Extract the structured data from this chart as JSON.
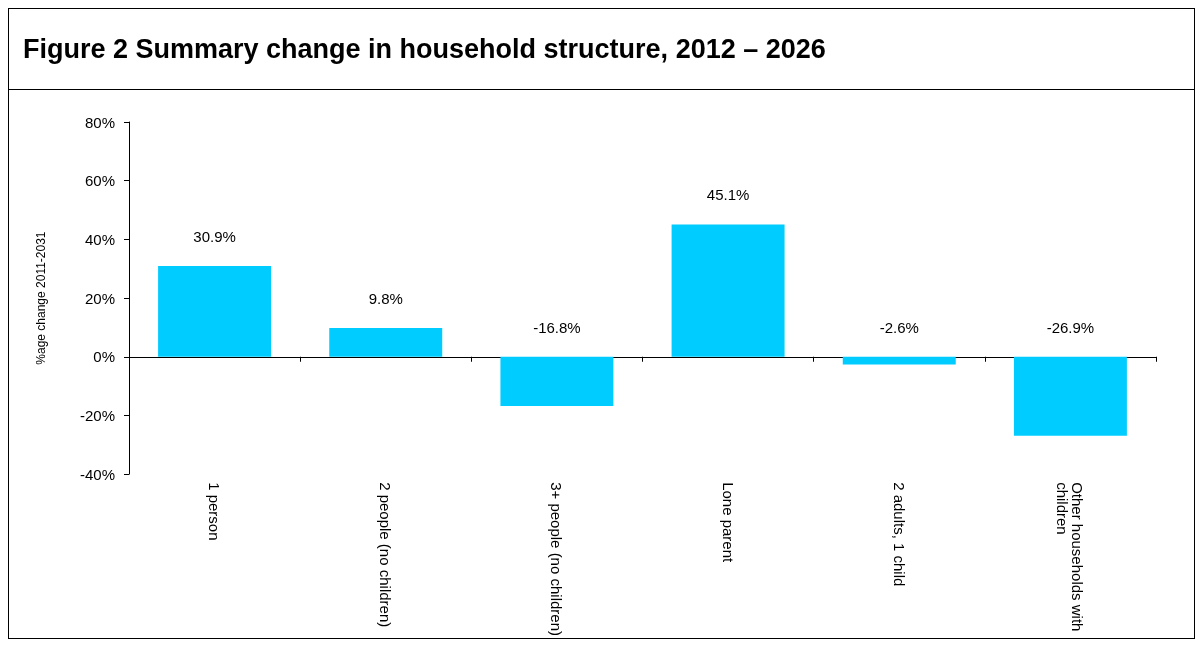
{
  "chart_data": {
    "type": "bar",
    "title": "Figure 2 Summary change in household structure, 2012 – 2026",
    "ylabel": "%age change 2011-2031",
    "categories": [
      "1 person",
      "2 people (no children)",
      "3+ people (no children)",
      "Lone parent",
      "2 adults, 1 child",
      "Other households with children"
    ],
    "values": [
      30.9,
      9.8,
      -16.8,
      45.1,
      -2.6,
      -26.9
    ],
    "value_labels": [
      "30.9%",
      "9.8%",
      "-16.8%",
      "45.1%",
      "-2.6%",
      "-26.9%"
    ],
    "color": "#00ccff",
    "ylim": [
      -40,
      80
    ],
    "yticks": [
      {
        "value": -40,
        "label": "-40%"
      },
      {
        "value": -20,
        "label": "-20%"
      },
      {
        "value": 0,
        "label": "0%"
      },
      {
        "value": 20,
        "label": "20%"
      },
      {
        "value": 40,
        "label": "40%"
      },
      {
        "value": 60,
        "label": "60%"
      },
      {
        "value": 80,
        "label": "80%"
      }
    ],
    "xlabel": null
  }
}
